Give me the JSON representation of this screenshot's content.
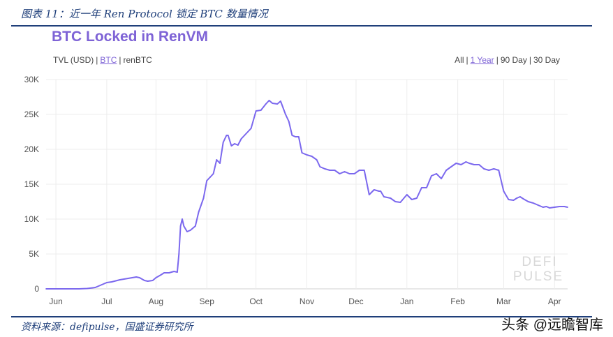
{
  "caption": "图表 11：近一年 Ren Protocol 锁定 BTC 数量情况",
  "title": "BTC Locked in RenVM",
  "unit_tabs": [
    {
      "label": "TVL (USD)",
      "active": false
    },
    {
      "label": "BTC",
      "active": true
    },
    {
      "label": "renBTC",
      "active": false
    }
  ],
  "range_tabs": [
    {
      "label": "All",
      "active": false
    },
    {
      "label": "1 Year",
      "active": true
    },
    {
      "label": "90 Day",
      "active": false
    },
    {
      "label": "30 Day",
      "active": false
    }
  ],
  "source": "资料来源：defipulse，国盛证券研究所",
  "corner_watermark": "头条 @远瞻智库",
  "chart_watermark": [
    "DEFI",
    "PULSE"
  ],
  "colors": {
    "line": "#7b68ee",
    "title": "#7e63d6",
    "caption": "#1f3f7a",
    "grid": "#ececec"
  },
  "chart_data": {
    "type": "line",
    "title": "BTC Locked in RenVM",
    "y_tick_labels": [
      "0",
      "5K",
      "10K",
      "15K",
      "20K",
      "25K",
      "30K"
    ],
    "y_ticks": [
      0,
      5000,
      10000,
      15000,
      20000,
      25000,
      30000
    ],
    "ylim": [
      0,
      30000
    ],
    "x_tick_labels": [
      "Jun",
      "Jul",
      "Aug",
      "Sep",
      "Oct",
      "Nov",
      "Dec",
      "Jan",
      "Feb",
      "Mar",
      "Apr"
    ],
    "x_ticks": [
      6,
      37,
      67,
      98,
      128,
      159,
      189,
      220,
      251,
      279,
      310
    ],
    "xlim": [
      0,
      318
    ],
    "grid": true,
    "series": [
      {
        "x": [
          0,
          10,
          20,
          25,
          30,
          34,
          37,
          40,
          45,
          50,
          55,
          57,
          60,
          62,
          65,
          67,
          70,
          72,
          75,
          78,
          80,
          81,
          82,
          83,
          84,
          86,
          88,
          91,
          93,
          96,
          98,
          100,
          102,
          104,
          106,
          108,
          110,
          111,
          113,
          115,
          117,
          119,
          121,
          125,
          128,
          131,
          134,
          136,
          138,
          141,
          143,
          146,
          148,
          150,
          152,
          154,
          156,
          159,
          162,
          165,
          167,
          170,
          173,
          176,
          179,
          182,
          185,
          188,
          191,
          194,
          197,
          200,
          203,
          204,
          206,
          210,
          213,
          216,
          220,
          223,
          226,
          229,
          232,
          235,
          238,
          241,
          244,
          247,
          250,
          253,
          256,
          258,
          261,
          264,
          267,
          270,
          273,
          276,
          279,
          282,
          285,
          287,
          289,
          291,
          294,
          297,
          300,
          303,
          305,
          307,
          310,
          313,
          316,
          318
        ],
        "y": [
          0,
          0,
          0,
          50,
          200,
          600,
          900,
          1000,
          1300,
          1500,
          1700,
          1600,
          1200,
          1100,
          1200,
          1600,
          2000,
          2300,
          2300,
          2500,
          2400,
          5000,
          9000,
          10000,
          9000,
          8200,
          8400,
          9000,
          11000,
          13000,
          15500,
          16000,
          16500,
          18500,
          18000,
          21000,
          22000,
          22000,
          20500,
          20800,
          20600,
          21500,
          22000,
          23000,
          25500,
          25600,
          26500,
          27000,
          26600,
          26500,
          26900,
          25000,
          24000,
          22000,
          21800,
          21800,
          19500,
          19200,
          19000,
          18500,
          17500,
          17200,
          17000,
          17000,
          16500,
          16800,
          16500,
          16500,
          17000,
          17000,
          13500,
          14200,
          14000,
          14000,
          13200,
          13000,
          12500,
          12400,
          13500,
          12800,
          13000,
          14500,
          14500,
          16200,
          16500,
          15800,
          17000,
          17500,
          18000,
          17800,
          18200,
          18000,
          17800,
          17800,
          17200,
          17000,
          17200,
          17000,
          14000,
          12800,
          12700,
          13000,
          13200,
          12900,
          12500,
          12300,
          12000,
          11700,
          11800,
          11600,
          11700,
          11800,
          11800,
          11700
        ]
      }
    ]
  }
}
